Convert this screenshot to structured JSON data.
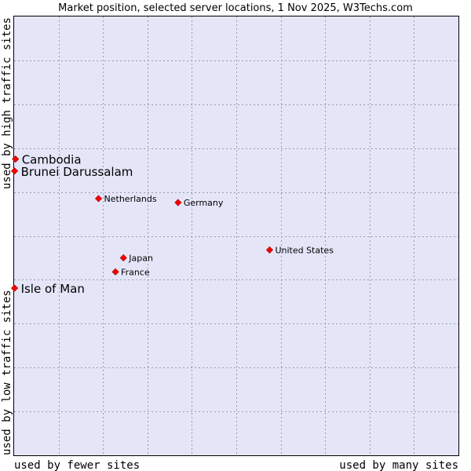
{
  "chart_data": {
    "type": "scatter",
    "title": "Market position, selected server locations, 1 Nov 2025, W3Techs.com",
    "xlabel_left": "used by fewer sites",
    "xlabel_right": "used by many sites",
    "ylabel_bottom": "used by low traffic sites",
    "ylabel_top": "used by high traffic sites",
    "grid": true,
    "xlim": [
      0,
      100
    ],
    "ylim": [
      0,
      100
    ],
    "points": [
      {
        "label": "Cambodia",
        "x": 0.3,
        "y": 67.5,
        "highlight": true
      },
      {
        "label": "Brunei Darussalam",
        "x": 0.1,
        "y": 64.8,
        "highlight": true
      },
      {
        "label": "Isle of Man",
        "x": 0.1,
        "y": 38.1,
        "highlight": true
      },
      {
        "label": "Netherlands",
        "x": 19.0,
        "y": 58.5,
        "highlight": false
      },
      {
        "label": "Germany",
        "x": 36.9,
        "y": 57.6,
        "highlight": false
      },
      {
        "label": "United States",
        "x": 57.5,
        "y": 46.8,
        "highlight": false
      },
      {
        "label": "Japan",
        "x": 24.6,
        "y": 45.0,
        "highlight": false
      },
      {
        "label": "France",
        "x": 22.8,
        "y": 41.8,
        "highlight": false
      }
    ],
    "colors": {
      "marker": "#ff0000",
      "plot_background": "#e4e6f8"
    }
  }
}
